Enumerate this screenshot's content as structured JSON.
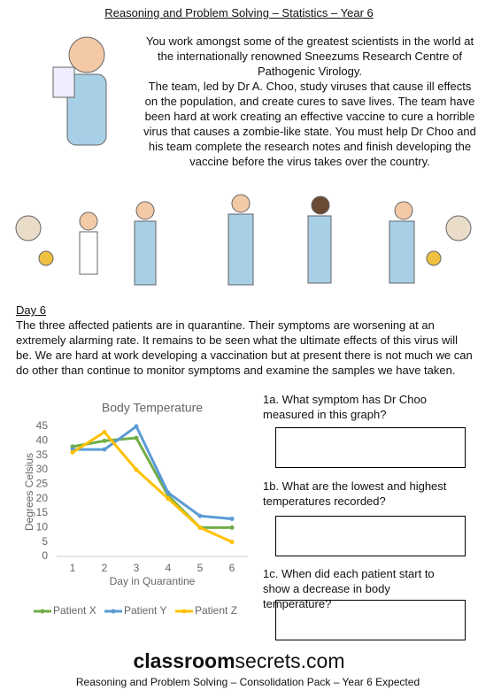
{
  "header": {
    "title": "Reasoning and Problem Solving – Statistics – Year 6"
  },
  "intro": [
    "You work amongst some of the greatest scientists in the world at the internationally renowned Sneezums Research Centre of Pathogenic Virology.",
    "The team, led by Dr A. Choo, study viruses that cause ill effects on the population, and create cures to save lives. The team have been hard at work creating an effective vaccine to cure a horrible virus that causes a zombie-like state. You must help Dr Choo and his team complete the research notes and finish developing the vaccine before the virus takes over the country."
  ],
  "day": {
    "heading": "Day 6",
    "body": "The three affected patients are in quarantine. Their symptoms are worsening at an extremely alarming rate. It remains to be seen what the ultimate effects of this virus will be. We are hard at work developing a vaccination but at present there is not much we can do other than continue to monitor symptoms and examine the samples we have taken."
  },
  "questions": [
    "1a. What symptom has Dr Choo measured in this graph?",
    "1b. What are the lowest and highest temperatures recorded?",
    "1c. When did each patient start to show a decrease in body temperature?"
  ],
  "chart_data": {
    "type": "line",
    "title": "Body Temperature",
    "x_label": "Day in Quarantine",
    "y_label": "Degrees Celsius",
    "x": [
      1,
      2,
      3,
      4,
      5,
      6
    ],
    "xlim": [
      0.5,
      6.5
    ],
    "xticks": [
      1,
      2,
      3,
      4,
      5,
      6
    ],
    "ylim": [
      0,
      45
    ],
    "yticks": [
      0,
      5,
      10,
      15,
      20,
      25,
      30,
      35,
      40,
      45
    ],
    "legend": "bottom",
    "series": [
      {
        "name": "Patient X",
        "color": "#70ad47",
        "values": [
          38,
          40,
          41,
          21,
          10,
          10
        ]
      },
      {
        "name": "Patient Y",
        "color": "#5b9bd5",
        "values": [
          37,
          37,
          45,
          22,
          14,
          13
        ]
      },
      {
        "name": "Patient Z",
        "color": "#ffc000",
        "values": [
          36,
          43,
          30,
          20,
          10,
          5
        ]
      }
    ]
  },
  "footer": {
    "site_bold": "classroom",
    "site_rest": "secrets.com",
    "subtitle": "Reasoning and Problem Solving – Consolidation Pack – Year 6 Expected"
  }
}
